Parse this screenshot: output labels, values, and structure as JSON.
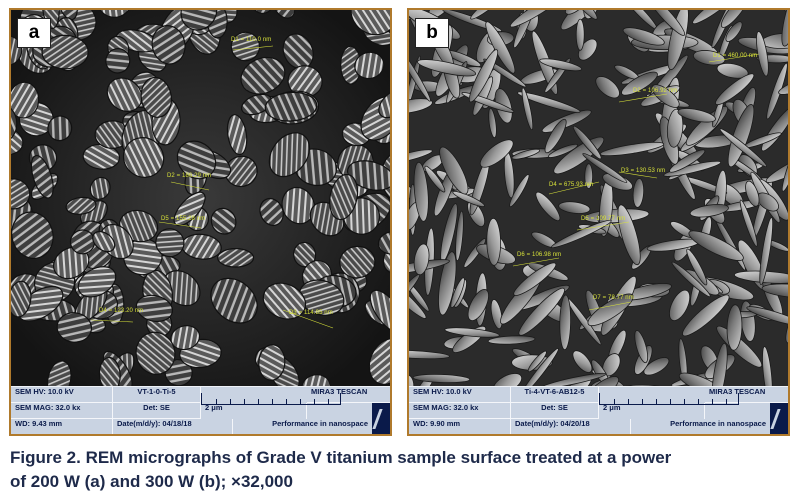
{
  "figure": {
    "caption_line1": "Figure 2. REM micrographs of Grade V titanium sample surface treated at a power",
    "caption_line2": "of 200 W (a) and 300 W (b); ×32,000"
  },
  "panels": [
    {
      "letter": "a",
      "measurements": [
        "D1 = 110.0 nm",
        "D2 = 186.29 nm",
        "D5 = 155.28 nm",
        "D4 = 123.20 nm",
        "D3 = 114.85 nm"
      ],
      "info": {
        "hv_label": "SEM HV: 10.0 kV",
        "sample": "VT-1-0-Ti-5",
        "brand": "MIRA3 TESCAN",
        "mag_label": "SEM MAG: 32.0 kx",
        "det_label": "Det: SE",
        "scale_label": "2 μm",
        "wd_label": "WD: 9.43 mm",
        "date_label": "Date(m/d/y): 04/18/18",
        "tagline": "Performance in nanospace"
      }
    },
    {
      "letter": "b",
      "measurements": [
        "D1 = 460.00 nm",
        "D2 = 106.92 nm",
        "D4 = 675.93 nm",
        "D3 = 130.53 nm",
        "D5 = 109.77 nm",
        "D6 = 106.98 nm",
        "D7 = 78.77 nm"
      ],
      "info": {
        "hv_label": "SEM HV: 10.0 kV",
        "sample": "Ti-4-VT-6-AB12-5",
        "brand": "MIRA3 TESCAN",
        "mag_label": "SEM MAG: 32.0 kx",
        "det_label": "Det: SE",
        "scale_label": "2 μm",
        "wd_label": "WD: 9.90 mm",
        "date_label": "Date(m/d/y): 04/20/18",
        "tagline": "Performance in nanospace"
      }
    }
  ],
  "colors": {
    "frame": "#b07a2c",
    "info_bar": "#c9d3e2",
    "info_text": "#0a1a4a",
    "measurement_text": "#d8e23a",
    "caption_text": "#1e2a4a"
  }
}
